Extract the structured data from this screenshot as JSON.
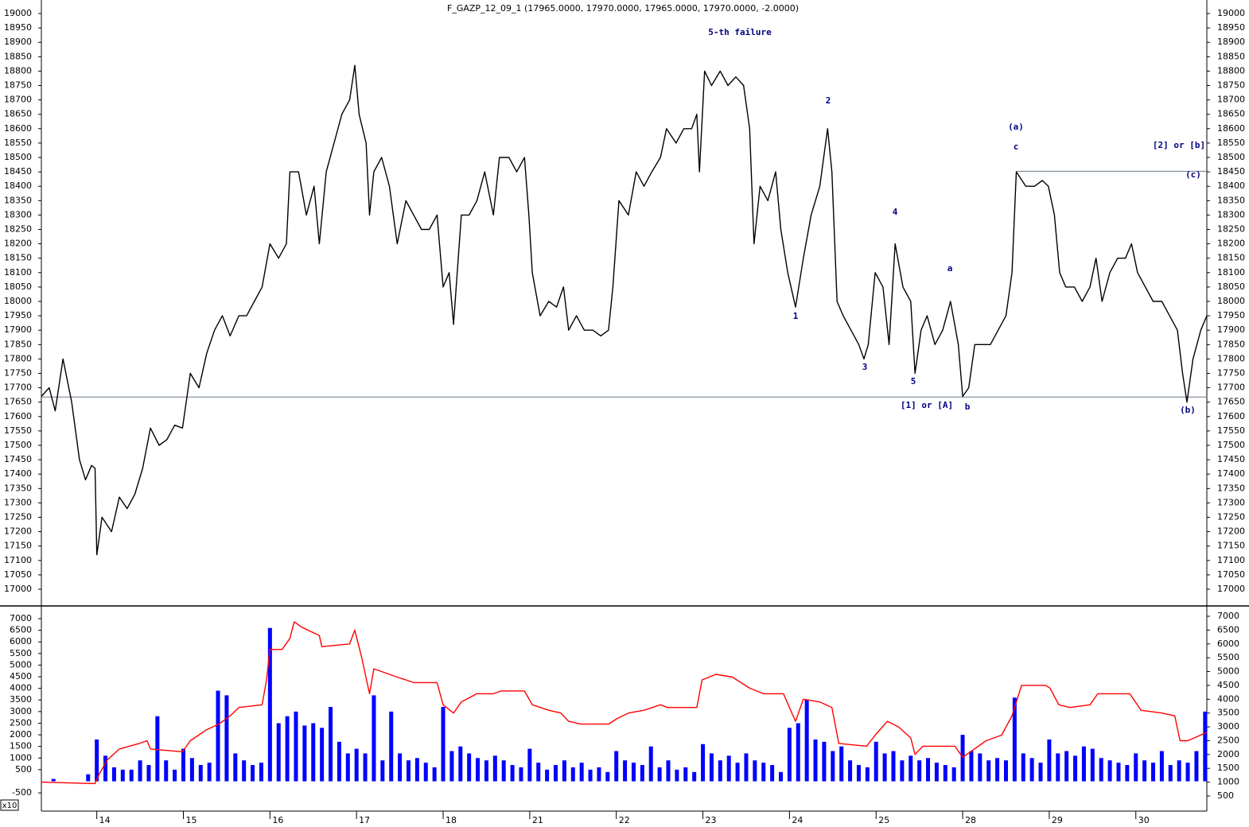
{
  "chart_data": [
    {
      "type": "line",
      "title": "F_GAZP_12_09_1 (17965.0000, 17970.0000, 17965.0000, 17970.0000, -2.0000)",
      "xlim": [
        0.36,
        13.82
      ],
      "ylim": [
        16942,
        19047
      ],
      "yticks": [
        17000,
        17050,
        17100,
        17150,
        17200,
        17250,
        17300,
        17350,
        17400,
        17450,
        17500,
        17550,
        17600,
        17650,
        17700,
        17750,
        17800,
        17850,
        17900,
        17950,
        18000,
        18050,
        18100,
        18150,
        18200,
        18250,
        18300,
        18350,
        18400,
        18450,
        18500,
        18550,
        18600,
        18650,
        18700,
        18750,
        18800,
        18850,
        18900,
        18950,
        19000
      ],
      "hlines": [
        {
          "value": 17668,
          "xstart": 0.36
        },
        {
          "value": 18452,
          "xstart": 11.62
        }
      ],
      "annotations": [
        "5-th failure",
        "2",
        "(a)",
        "c",
        "[2] or [b]",
        "(c)",
        "4",
        "a",
        "1",
        "3",
        "5",
        "[1] or [A]",
        "b",
        "(b)"
      ],
      "series": [
        {
          "color": "#000000",
          "x": [
            0.36,
            0.45,
            0.52,
            0.61,
            0.71,
            0.8,
            0.87,
            0.94,
            0.98,
            1.0,
            1.06,
            1.17,
            1.26,
            1.35,
            1.44,
            1.53,
            1.62,
            1.72,
            1.81,
            1.9,
            1.99,
            2.08,
            2.18,
            2.27,
            2.36,
            2.45,
            2.54,
            2.64,
            2.73,
            2.82,
            2.91,
            3.0,
            3.1,
            3.19,
            3.23,
            3.33,
            3.42,
            3.51,
            3.57,
            3.65,
            3.74,
            3.83,
            3.92,
            3.98,
            4.03,
            4.11,
            4.15,
            4.2,
            4.29,
            4.38,
            4.47,
            4.57,
            4.66,
            4.75,
            4.84,
            4.93,
            5.0,
            5.07,
            5.12,
            5.21,
            5.3,
            5.39,
            5.48,
            5.58,
            5.65,
            5.76,
            5.85,
            5.94,
            5.99,
            6.03,
            6.12,
            6.22,
            6.31,
            6.39,
            6.45,
            6.54,
            6.63,
            6.73,
            6.82,
            6.91,
            6.96,
            7.03,
            7.14,
            7.23,
            7.32,
            7.41,
            7.51,
            7.58,
            7.69,
            7.78,
            7.87,
            7.93,
            7.96,
            8.02,
            8.1,
            8.2,
            8.29,
            8.38,
            8.47,
            8.54,
            8.59,
            8.66,
            8.75,
            8.84,
            8.9,
            8.98,
            9.07,
            9.16,
            9.25,
            9.35,
            9.44,
            9.49,
            9.55,
            9.62,
            9.71,
            9.8,
            9.86,
            9.91,
            9.99,
            10.08,
            10.15,
            10.22,
            10.31,
            10.4,
            10.45,
            10.52,
            10.59,
            10.68,
            10.77,
            10.86,
            10.95,
            11.0,
            11.07,
            11.14,
            11.23,
            11.32,
            11.41,
            11.5,
            11.57,
            11.62,
            11.73,
            11.83,
            11.92,
            11.99,
            12.06,
            12.12,
            12.19,
            12.29,
            12.38,
            12.47,
            12.54,
            12.61,
            12.7,
            12.79,
            12.88,
            12.95,
            13.02,
            13.11,
            13.2,
            13.3,
            13.39,
            13.48,
            13.54,
            13.59,
            13.66,
            13.75,
            13.82
          ],
          "values": [
            17670,
            17700,
            17620,
            17800,
            17650,
            17450,
            17380,
            17430,
            17420,
            17120,
            17250,
            17200,
            17320,
            17280,
            17330,
            17420,
            17560,
            17500,
            17520,
            17570,
            17560,
            17750,
            17700,
            17820,
            17900,
            17950,
            17880,
            17950,
            17950,
            18000,
            18050,
            18200,
            18150,
            18200,
            18450,
            18450,
            18300,
            18400,
            18200,
            18450,
            18550,
            18650,
            18700,
            18820,
            18650,
            18550,
            18300,
            18450,
            18500,
            18400,
            18200,
            18350,
            18300,
            18250,
            18250,
            18300,
            18050,
            18100,
            17920,
            18300,
            18300,
            18350,
            18450,
            18300,
            18500,
            18500,
            18450,
            18500,
            18300,
            18100,
            17950,
            18000,
            17980,
            18050,
            17900,
            17950,
            17900,
            17900,
            17880,
            17900,
            18050,
            18350,
            18300,
            18450,
            18400,
            18450,
            18500,
            18600,
            18550,
            18600,
            18600,
            18650,
            18450,
            18800,
            18750,
            18800,
            18750,
            18780,
            18750,
            18600,
            18200,
            18400,
            18350,
            18450,
            18250,
            18100,
            17980,
            18150,
            18300,
            18400,
            18600,
            18450,
            18000,
            17950,
            17900,
            17850,
            17800,
            17850,
            18100,
            18050,
            17850,
            18200,
            18050,
            18000,
            17750,
            17900,
            17950,
            17850,
            17900,
            18000,
            17850,
            17670,
            17700,
            17850,
            17850,
            17850,
            17900,
            17950,
            18100,
            18450,
            18400,
            18400,
            18420,
            18400,
            18300,
            18100,
            18050,
            18050,
            18000,
            18050,
            18150,
            18000,
            18100,
            18150,
            18150,
            18200,
            18100,
            18050,
            18000,
            18000,
            17950,
            17900,
            17750,
            17650,
            17800,
            17900,
            17950
          ]
        }
      ]
    },
    {
      "type": "bar_line",
      "xlim": [
        0.36,
        13.82
      ],
      "xticks": [
        {
          "value": 1,
          "label": "14"
        },
        {
          "value": 2,
          "label": "15"
        },
        {
          "value": 3,
          "label": "16"
        },
        {
          "value": 4,
          "label": "17"
        },
        {
          "value": 5,
          "label": "18"
        },
        {
          "value": 6,
          "label": "21"
        },
        {
          "value": 7,
          "label": "22"
        },
        {
          "value": 8,
          "label": "23"
        },
        {
          "value": 9,
          "label": "24"
        },
        {
          "value": 10,
          "label": "25"
        },
        {
          "value": 11,
          "label": "28"
        },
        {
          "value": 12,
          "label": "29"
        },
        {
          "value": 13,
          "label": "30"
        }
      ],
      "ylim": [
        -1215,
        7513
      ],
      "yticks": [
        7000,
        6500,
        6000,
        5500,
        5000,
        4500,
        4000,
        3500,
        3000,
        2500,
        2000,
        1500,
        1000,
        500,
        -500
      ],
      "y2lim": [
        11,
        7345
      ],
      "y2ticks": [
        7000,
        6500,
        6000,
        5500,
        5000,
        4500,
        4000,
        3500,
        3000,
        2500,
        2000,
        1500,
        1000,
        500
      ],
      "unit_label": "x10",
      "series": [
        {
          "type": "bar",
          "color": "#0000ff",
          "x": [
            0.4,
            0.5,
            0.6,
            0.7,
            0.8,
            0.9,
            1.0,
            1.1,
            1.2,
            1.3,
            1.4,
            1.5,
            1.6,
            1.7,
            1.8,
            1.9,
            2.0,
            2.1,
            2.2,
            2.3,
            2.4,
            2.5,
            2.6,
            2.7,
            2.8,
            2.9,
            3.0,
            3.1,
            3.2,
            3.3,
            3.4,
            3.5,
            3.6,
            3.7,
            3.8,
            3.9,
            4.0,
            4.1,
            4.2,
            4.3,
            4.4,
            4.5,
            4.6,
            4.7,
            4.8,
            4.9,
            5.0,
            5.1,
            5.2,
            5.3,
            5.4,
            5.5,
            5.6,
            5.7,
            5.8,
            5.9,
            6.0,
            6.1,
            6.2,
            6.3,
            6.4,
            6.5,
            6.6,
            6.7,
            6.8,
            6.9,
            7.0,
            7.1,
            7.2,
            7.3,
            7.4,
            7.5,
            7.6,
            7.7,
            7.8,
            7.9,
            8.0,
            8.1,
            8.2,
            8.3,
            8.4,
            8.5,
            8.6,
            8.7,
            8.8,
            8.9,
            9.0,
            9.1,
            9.2,
            9.3,
            9.4,
            9.5,
            9.6,
            9.7,
            9.8,
            9.9,
            10.0,
            10.1,
            10.2,
            10.3,
            10.4,
            10.5,
            10.6,
            10.7,
            10.8,
            10.9,
            11.0,
            11.1,
            11.2,
            11.3,
            11.4,
            11.5,
            11.6,
            11.7,
            11.8,
            11.9,
            12.0,
            12.1,
            12.2,
            12.3,
            12.4,
            12.5,
            12.6,
            12.7,
            12.8,
            12.9,
            13.0,
            13.1,
            13.2,
            13.3,
            13.4,
            13.5,
            13.6,
            13.7,
            13.8
          ],
          "values": [
            0,
            100,
            0,
            0,
            0,
            300,
            1800,
            1100,
            600,
            500,
            500,
            900,
            700,
            2800,
            900,
            500,
            1400,
            1000,
            700,
            800,
            3900,
            3700,
            1200,
            900,
            700,
            800,
            6600,
            2500,
            2800,
            3000,
            2400,
            2500,
            2300,
            3200,
            1700,
            1200,
            1400,
            1200,
            3700,
            900,
            3000,
            1200,
            900,
            1000,
            800,
            600,
            3200,
            1300,
            1500,
            1200,
            1000,
            900,
            1100,
            900,
            700,
            600,
            1400,
            800,
            500,
            700,
            900,
            600,
            800,
            500,
            600,
            400,
            1300,
            900,
            800,
            700,
            1500,
            600,
            900,
            500,
            600,
            400,
            1600,
            1200,
            900,
            1100,
            800,
            1200,
            900,
            800,
            700,
            400,
            2300,
            2500,
            3500,
            1800,
            1700,
            1300,
            1500,
            900,
            700,
            600,
            1700,
            1200,
            1300,
            900,
            1100,
            900,
            1000,
            800,
            700,
            600,
            2000,
            1300,
            1200,
            900,
            1000,
            900,
            3600,
            1200,
            1000,
            800,
            1800,
            1200,
            1300,
            1100,
            1500,
            1400,
            1000,
            900,
            800,
            700,
            1200,
            900,
            800,
            1300,
            700,
            900,
            800,
            1300,
            3000
          ]
        },
        {
          "type": "line",
          "axis": "y2",
          "color": "#ff0000",
          "x": [
            0.36,
            0.98,
            1.03,
            1.12,
            1.26,
            1.49,
            1.58,
            1.62,
            1.99,
            2.08,
            2.27,
            2.41,
            2.54,
            2.64,
            2.91,
            2.96,
            3.0,
            3.14,
            3.23,
            3.28,
            3.37,
            3.57,
            3.6,
            3.92,
            3.98,
            4.06,
            4.15,
            4.2,
            4.29,
            4.47,
            4.57,
            4.66,
            4.93,
            5.0,
            5.12,
            5.21,
            5.39,
            5.58,
            5.67,
            5.94,
            6.03,
            6.22,
            6.36,
            6.45,
            6.59,
            6.91,
            7.01,
            7.14,
            7.32,
            7.51,
            7.59,
            7.93,
            7.99,
            8.15,
            8.34,
            8.54,
            8.7,
            8.93,
            9.07,
            9.16,
            9.35,
            9.49,
            9.57,
            9.89,
            9.99,
            10.13,
            10.26,
            10.4,
            10.45,
            10.54,
            10.91,
            11.0,
            11.09,
            11.27,
            11.45,
            11.57,
            11.68,
            11.96,
            12.01,
            12.11,
            12.24,
            12.47,
            12.56,
            12.93,
            13.06,
            13.3,
            13.45,
            13.51,
            13.6,
            13.82
          ],
          "values": [
            1000,
            950,
            1300,
            1800,
            2200,
            2400,
            2500,
            2200,
            2100,
            2500,
            2900,
            3100,
            3400,
            3700,
            3800,
            4700,
            5800,
            5800,
            6200,
            6800,
            6600,
            6300,
            5900,
            6000,
            6500,
            5500,
            4200,
            5100,
            5000,
            4800,
            4700,
            4600,
            4600,
            3800,
            3500,
            3900,
            4200,
            4200,
            4300,
            4300,
            3800,
            3600,
            3500,
            3200,
            3100,
            3100,
            3300,
            3500,
            3600,
            3800,
            3700,
            3700,
            4700,
            4900,
            4800,
            4400,
            4200,
            4200,
            3200,
            4000,
            3900,
            3700,
            2400,
            2300,
            2700,
            3200,
            3000,
            2600,
            2000,
            2300,
            2300,
            1900,
            2100,
            2500,
            2700,
            3400,
            4500,
            4500,
            4400,
            3800,
            3700,
            3800,
            4200,
            4200,
            3600,
            3500,
            3400,
            2500,
            2500,
            2800
          ]
        }
      ]
    }
  ]
}
